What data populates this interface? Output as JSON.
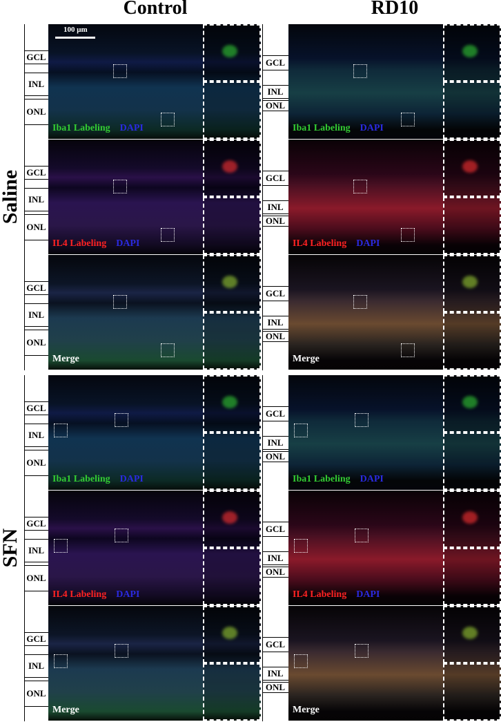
{
  "columns": [
    "Control",
    "RD10"
  ],
  "groups": [
    "Saline",
    "SFN"
  ],
  "layers": [
    "GCL",
    "INL",
    "ONL"
  ],
  "stains": [
    {
      "label": "Iba1 Labeling",
      "counterstain": "DAPI"
    },
    {
      "label": "IL4 Labeling",
      "counterstain": "DAPI"
    },
    {
      "label": "Merge"
    }
  ],
  "scale_bar": "100 μm"
}
